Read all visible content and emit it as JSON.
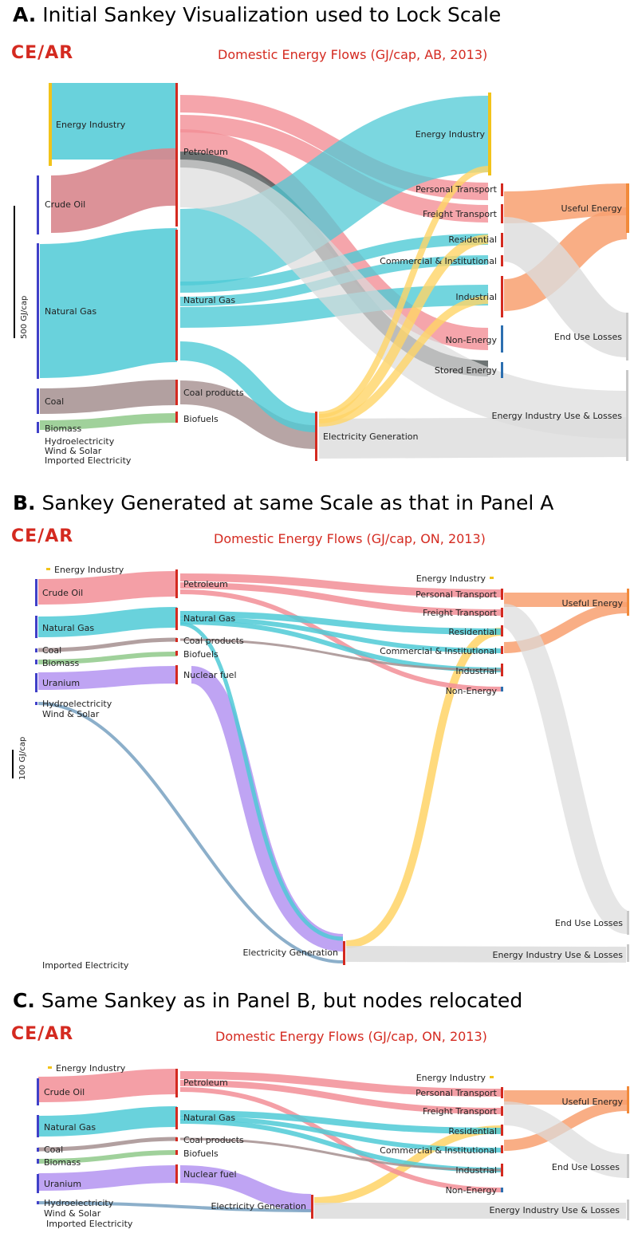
{
  "logo_text": "CE/AR",
  "panels": [
    {
      "letter": "A.",
      "title": "Initial Sankey Visualization used to Lock Scale",
      "subtitle": "Domestic Energy Flows (GJ/cap, AB, 2013)",
      "scale_label": "500 GJ/cap",
      "nodes": {
        "energy_industry_src": "Energy Industry",
        "crude_oil": "Crude Oil",
        "natural_gas": "Natural Gas",
        "coal": "Coal",
        "biomass": "Biomass",
        "hydro": "Hydroelectricity",
        "wind_solar": "Wind & Solar",
        "imported_elec": "Imported Electricity",
        "petroleum": "Petroleum",
        "natural_gas_mid": "Natural Gas",
        "coal_products": "Coal products",
        "biofuels": "Biofuels",
        "elec_gen": "Electricity Generation",
        "energy_industry_dst": "Energy Industry",
        "personal_transport": "Personal Transport",
        "freight_transport": "Freight Transport",
        "residential": "Residential",
        "commercial": "Commercial & Institutional",
        "industrial": "Industrial",
        "non_energy": "Non-Energy",
        "stored_energy": "Stored Energy",
        "useful_energy": "Useful Energy",
        "end_use_losses": "End Use Losses",
        "ei_use_losses": "Energy Industry Use & Losses"
      }
    },
    {
      "letter": "B.",
      "title": "Sankey Generated at same Scale as that in Panel A",
      "subtitle": "Domestic Energy Flows (GJ/cap, ON, 2013)",
      "scale_label": "100 GJ/cap",
      "nodes": {
        "energy_industry_src": "Energy Industry",
        "crude_oil": "Crude Oil",
        "natural_gas": "Natural Gas",
        "coal": "Coal",
        "biomass": "Biomass",
        "uranium": "Uranium",
        "hydro": "Hydroelectricity",
        "wind_solar": "Wind & Solar",
        "imported_elec": "Imported Electricity",
        "petroleum": "Petroleum",
        "natural_gas_mid": "Natural Gas",
        "coal_products": "Coal products",
        "biofuels": "Biofuels",
        "nuclear_fuel": "Nuclear fuel",
        "elec_gen": "Electricity Generation",
        "energy_industry_dst": "Energy Industry",
        "personal_transport": "Personal Transport",
        "freight_transport": "Freight Transport",
        "residential": "Residential",
        "commercial": "Commercial & Institutional",
        "industrial": "Industrial",
        "non_energy": "Non-Energy",
        "useful_energy": "Useful Energy",
        "end_use_losses": "End Use Losses",
        "ei_use_losses": "Energy Industry Use & Losses"
      }
    },
    {
      "letter": "C.",
      "title": "Same Sankey as in Panel B, but nodes relocated",
      "subtitle": "Domestic Energy Flows (GJ/cap, ON, 2013)",
      "nodes": {
        "energy_industry_src": "Energy Industry",
        "crude_oil": "Crude Oil",
        "natural_gas": "Natural Gas",
        "coal": "Coal",
        "biomass": "Biomass",
        "uranium": "Uranium",
        "hydro": "Hydroelectricity",
        "wind_solar": "Wind & Solar",
        "imported_elec": "Imported Electricity",
        "petroleum": "Petroleum",
        "natural_gas_mid": "Natural Gas",
        "coal_products": "Coal products",
        "biofuels": "Biofuels",
        "nuclear_fuel": "Nuclear fuel",
        "elec_gen": "Electricity Generation",
        "energy_industry_dst": "Energy Industry",
        "personal_transport": "Personal Transport",
        "freight_transport": "Freight Transport",
        "residential": "Residential",
        "commercial": "Commercial & Institutional",
        "industrial": "Industrial",
        "non_energy": "Non-Energy",
        "useful_energy": "Useful Energy",
        "end_use_losses": "End Use Losses",
        "ei_use_losses": "Energy Industry Use & Losses"
      }
    }
  ],
  "colors": {
    "petroleum": "#f28e96",
    "gas": "#4fcad6",
    "coal": "#a58f8f",
    "bio": "#8fc98a",
    "elec": "#ffd466",
    "uranium": "#b89af2",
    "hydro": "#7fa6c4",
    "energy_industry": "#f2c31a",
    "useful": "#f8a070",
    "loss": "#dcdcdc",
    "node_red": "#d42a20",
    "node_blue": "#4040c8",
    "node_navy": "#2c6fb0",
    "brand_red": "#d42a20"
  }
}
